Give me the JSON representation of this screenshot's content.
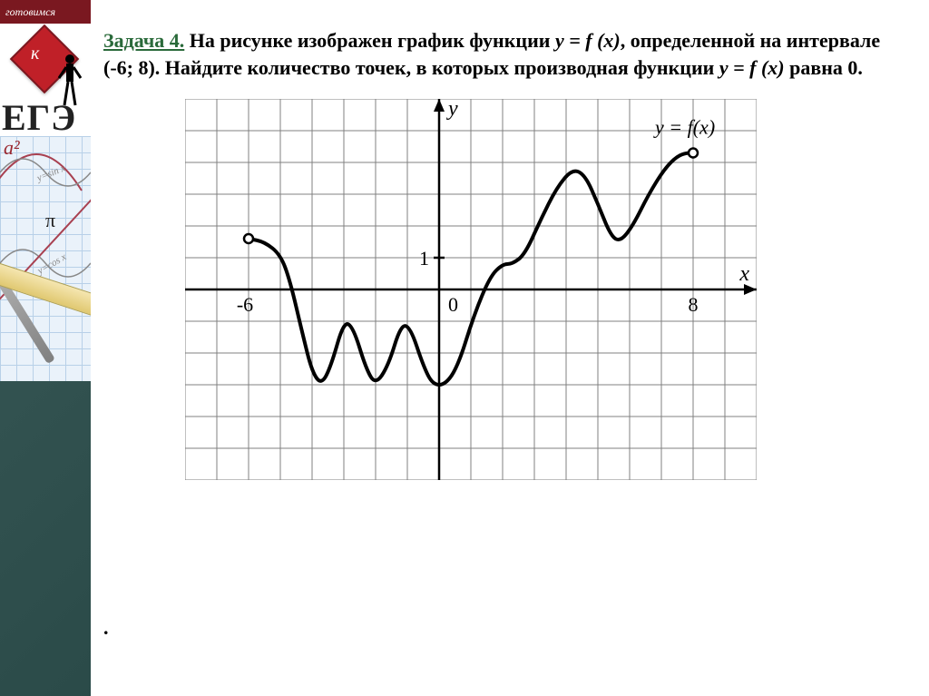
{
  "sidebar": {
    "top_text": "готовимся",
    "logo_letter": "к",
    "ege_label": "ЕГЭ",
    "a2_label": "a²",
    "pi_label": "π",
    "sin_label": "y=sin x",
    "cos_label": "y=cos x"
  },
  "task": {
    "label": "Задача 4.",
    "text_1": "  На рисунке изображен график функции ",
    "fx1": "y = f (x)",
    "text_2": ", определенной на интервале (-6; 8). Найдите количество точек, в которых производная функции ",
    "fx2": "y = f (x)",
    "text_3": " равна 0."
  },
  "chart": {
    "type": "line",
    "title": "y = f(x)",
    "y_axis_label": "y",
    "x_axis_label": "x",
    "axis_labels": {
      "zero": "0",
      "one": "1",
      "xmin": "-6",
      "xmax": "8"
    },
    "xlim": [
      -8,
      10
    ],
    "ylim": [
      -6,
      6
    ],
    "grid_step": 1,
    "grid_color": "#808080",
    "background_color": "#ffffff",
    "curve_color": "#000000",
    "curve_width": 4.0,
    "axis_color": "#000000",
    "endpoint_open": true,
    "curve_points": [
      [
        -6,
        1.6
      ],
      [
        -5.5,
        1.5
      ],
      [
        -5.0,
        1.1
      ],
      [
        -4.7,
        0.3
      ],
      [
        -4.3,
        -1.4
      ],
      [
        -4.0,
        -2.6
      ],
      [
        -3.7,
        -3.0
      ],
      [
        -3.4,
        -2.4
      ],
      [
        -3.0,
        -1.0
      ],
      [
        -2.7,
        -1.2
      ],
      [
        -2.3,
        -2.5
      ],
      [
        -2.0,
        -3.0
      ],
      [
        -1.6,
        -2.4
      ],
      [
        -1.2,
        -1.1
      ],
      [
        -0.9,
        -1.2
      ],
      [
        -0.5,
        -2.4
      ],
      [
        -0.2,
        -3.0
      ],
      [
        0.2,
        -3.0
      ],
      [
        0.6,
        -2.4
      ],
      [
        1.1,
        -0.8
      ],
      [
        1.6,
        0.4
      ],
      [
        2.0,
        0.8
      ],
      [
        2.3,
        0.8
      ],
      [
        2.7,
        1.1
      ],
      [
        3.2,
        2.2
      ],
      [
        3.7,
        3.2
      ],
      [
        4.2,
        3.8
      ],
      [
        4.6,
        3.6
      ],
      [
        5.0,
        2.7
      ],
      [
        5.4,
        1.7
      ],
      [
        5.7,
        1.5
      ],
      [
        6.1,
        2.0
      ],
      [
        6.6,
        3.0
      ],
      [
        7.1,
        3.8
      ],
      [
        7.5,
        4.2
      ],
      [
        7.8,
        4.3
      ],
      [
        8.0,
        4.3
      ]
    ]
  },
  "answer_marker": "."
}
